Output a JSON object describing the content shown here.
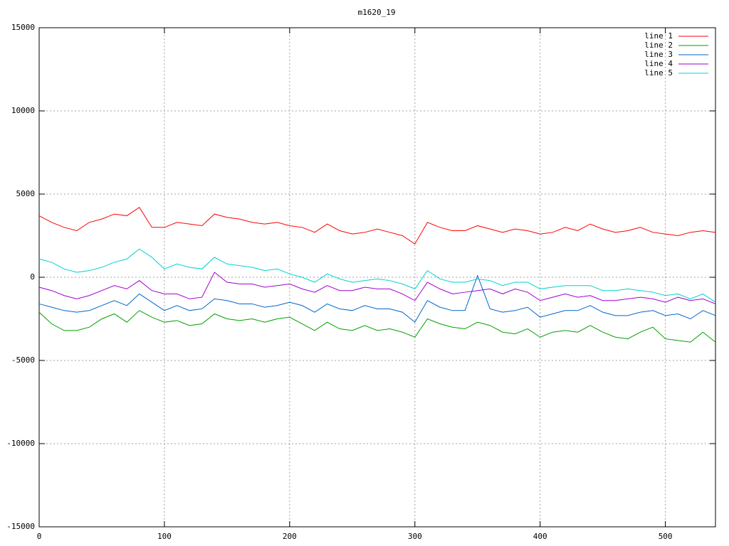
{
  "chart_data": {
    "type": "line",
    "title": "m1620_19",
    "x": [
      0,
      10,
      20,
      30,
      40,
      50,
      60,
      70,
      80,
      90,
      100,
      110,
      120,
      130,
      140,
      150,
      160,
      170,
      180,
      190,
      200,
      210,
      220,
      230,
      240,
      250,
      260,
      270,
      280,
      290,
      300,
      310,
      320,
      330,
      340,
      350,
      360,
      370,
      380,
      390,
      400,
      410,
      420,
      430,
      440,
      450,
      460,
      470,
      480,
      490,
      500,
      510,
      520,
      530,
      540
    ],
    "series": [
      {
        "name": "line 1",
        "color": "#ff0000",
        "values": [
          3700,
          3300,
          3000,
          2800,
          3300,
          3500,
          3800,
          3700,
          4200,
          3000,
          3000,
          3300,
          3200,
          3100,
          3800,
          3600,
          3500,
          3300,
          3200,
          3300,
          3100,
          3000,
          2700,
          3200,
          2800,
          2600,
          2700,
          2900,
          2700,
          2500,
          2000,
          3300,
          3000,
          2800,
          2800,
          3100,
          2900,
          2700,
          2900,
          2800,
          2600,
          2700,
          3000,
          2800,
          3200,
          2900,
          2700,
          2800,
          3000,
          2700,
          2600,
          2500,
          2700,
          2800,
          2700
        ]
      },
      {
        "name": "line 2",
        "color": "#00a000",
        "values": [
          -2100,
          -2800,
          -3200,
          -3200,
          -3000,
          -2500,
          -2200,
          -2700,
          -2000,
          -2400,
          -2700,
          -2600,
          -2900,
          -2800,
          -2200,
          -2500,
          -2600,
          -2500,
          -2700,
          -2500,
          -2400,
          -2800,
          -3200,
          -2700,
          -3100,
          -3200,
          -2900,
          -3200,
          -3100,
          -3300,
          -3600,
          -2500,
          -2800,
          -3000,
          -3100,
          -2700,
          -2900,
          -3300,
          -3400,
          -3100,
          -3600,
          -3300,
          -3200,
          -3300,
          -2900,
          -3300,
          -3600,
          -3700,
          -3300,
          -3000,
          -3700,
          -3800,
          -3900,
          -3300,
          -3900
        ]
      },
      {
        "name": "line 3",
        "color": "#0066cc",
        "values": [
          -1600,
          -1800,
          -2000,
          -2100,
          -2000,
          -1700,
          -1400,
          -1700,
          -1000,
          -1500,
          -2000,
          -1700,
          -2000,
          -1900,
          -1300,
          -1400,
          -1600,
          -1600,
          -1800,
          -1700,
          -1500,
          -1700,
          -2100,
          -1600,
          -1900,
          -2000,
          -1700,
          -1900,
          -1900,
          -2100,
          -2700,
          -1400,
          -1800,
          -2000,
          -2000,
          100,
          -1900,
          -2100,
          -2000,
          -1800,
          -2400,
          -2200,
          -2000,
          -2000,
          -1700,
          -2100,
          -2300,
          -2300,
          -2100,
          -2000,
          -2300,
          -2200,
          -2500,
          -2000,
          -2300
        ]
      },
      {
        "name": "line 4",
        "color": "#a000d0",
        "values": [
          -600,
          -800,
          -1100,
          -1300,
          -1100,
          -800,
          -500,
          -700,
          -200,
          -800,
          -1000,
          -1000,
          -1300,
          -1200,
          300,
          -300,
          -400,
          -400,
          -600,
          -500,
          -400,
          -700,
          -900,
          -500,
          -800,
          -800,
          -600,
          -700,
          -700,
          -1000,
          -1400,
          -300,
          -700,
          -1000,
          -900,
          -800,
          -700,
          -1000,
          -700,
          -900,
          -1400,
          -1200,
          -1000,
          -1200,
          -1100,
          -1400,
          -1400,
          -1300,
          -1200,
          -1300,
          -1500,
          -1200,
          -1400,
          -1300,
          -1600
        ]
      },
      {
        "name": "line 5",
        "color": "#00d0d0",
        "values": [
          1100,
          900,
          500,
          300,
          400,
          600,
          900,
          1100,
          1700,
          1200,
          500,
          800,
          600,
          500,
          1200,
          800,
          700,
          600,
          400,
          500,
          200,
          0,
          -300,
          200,
          -100,
          -300,
          -200,
          -100,
          -200,
          -400,
          -700,
          400,
          -100,
          -300,
          -300,
          -100,
          -200,
          -500,
          -300,
          -300,
          -700,
          -600,
          -500,
          -500,
          -500,
          -800,
          -800,
          -700,
          -800,
          -900,
          -1100,
          -1000,
          -1300,
          -1000,
          -1500
        ]
      }
    ],
    "xlim": [
      0,
      540
    ],
    "ylim": [
      -15000,
      15000
    ],
    "xticks": [
      0,
      100,
      200,
      300,
      400,
      500
    ],
    "yticks": [
      -15000,
      -10000,
      -5000,
      0,
      5000,
      10000,
      15000
    ],
    "grid": true,
    "legend": "top-right"
  }
}
